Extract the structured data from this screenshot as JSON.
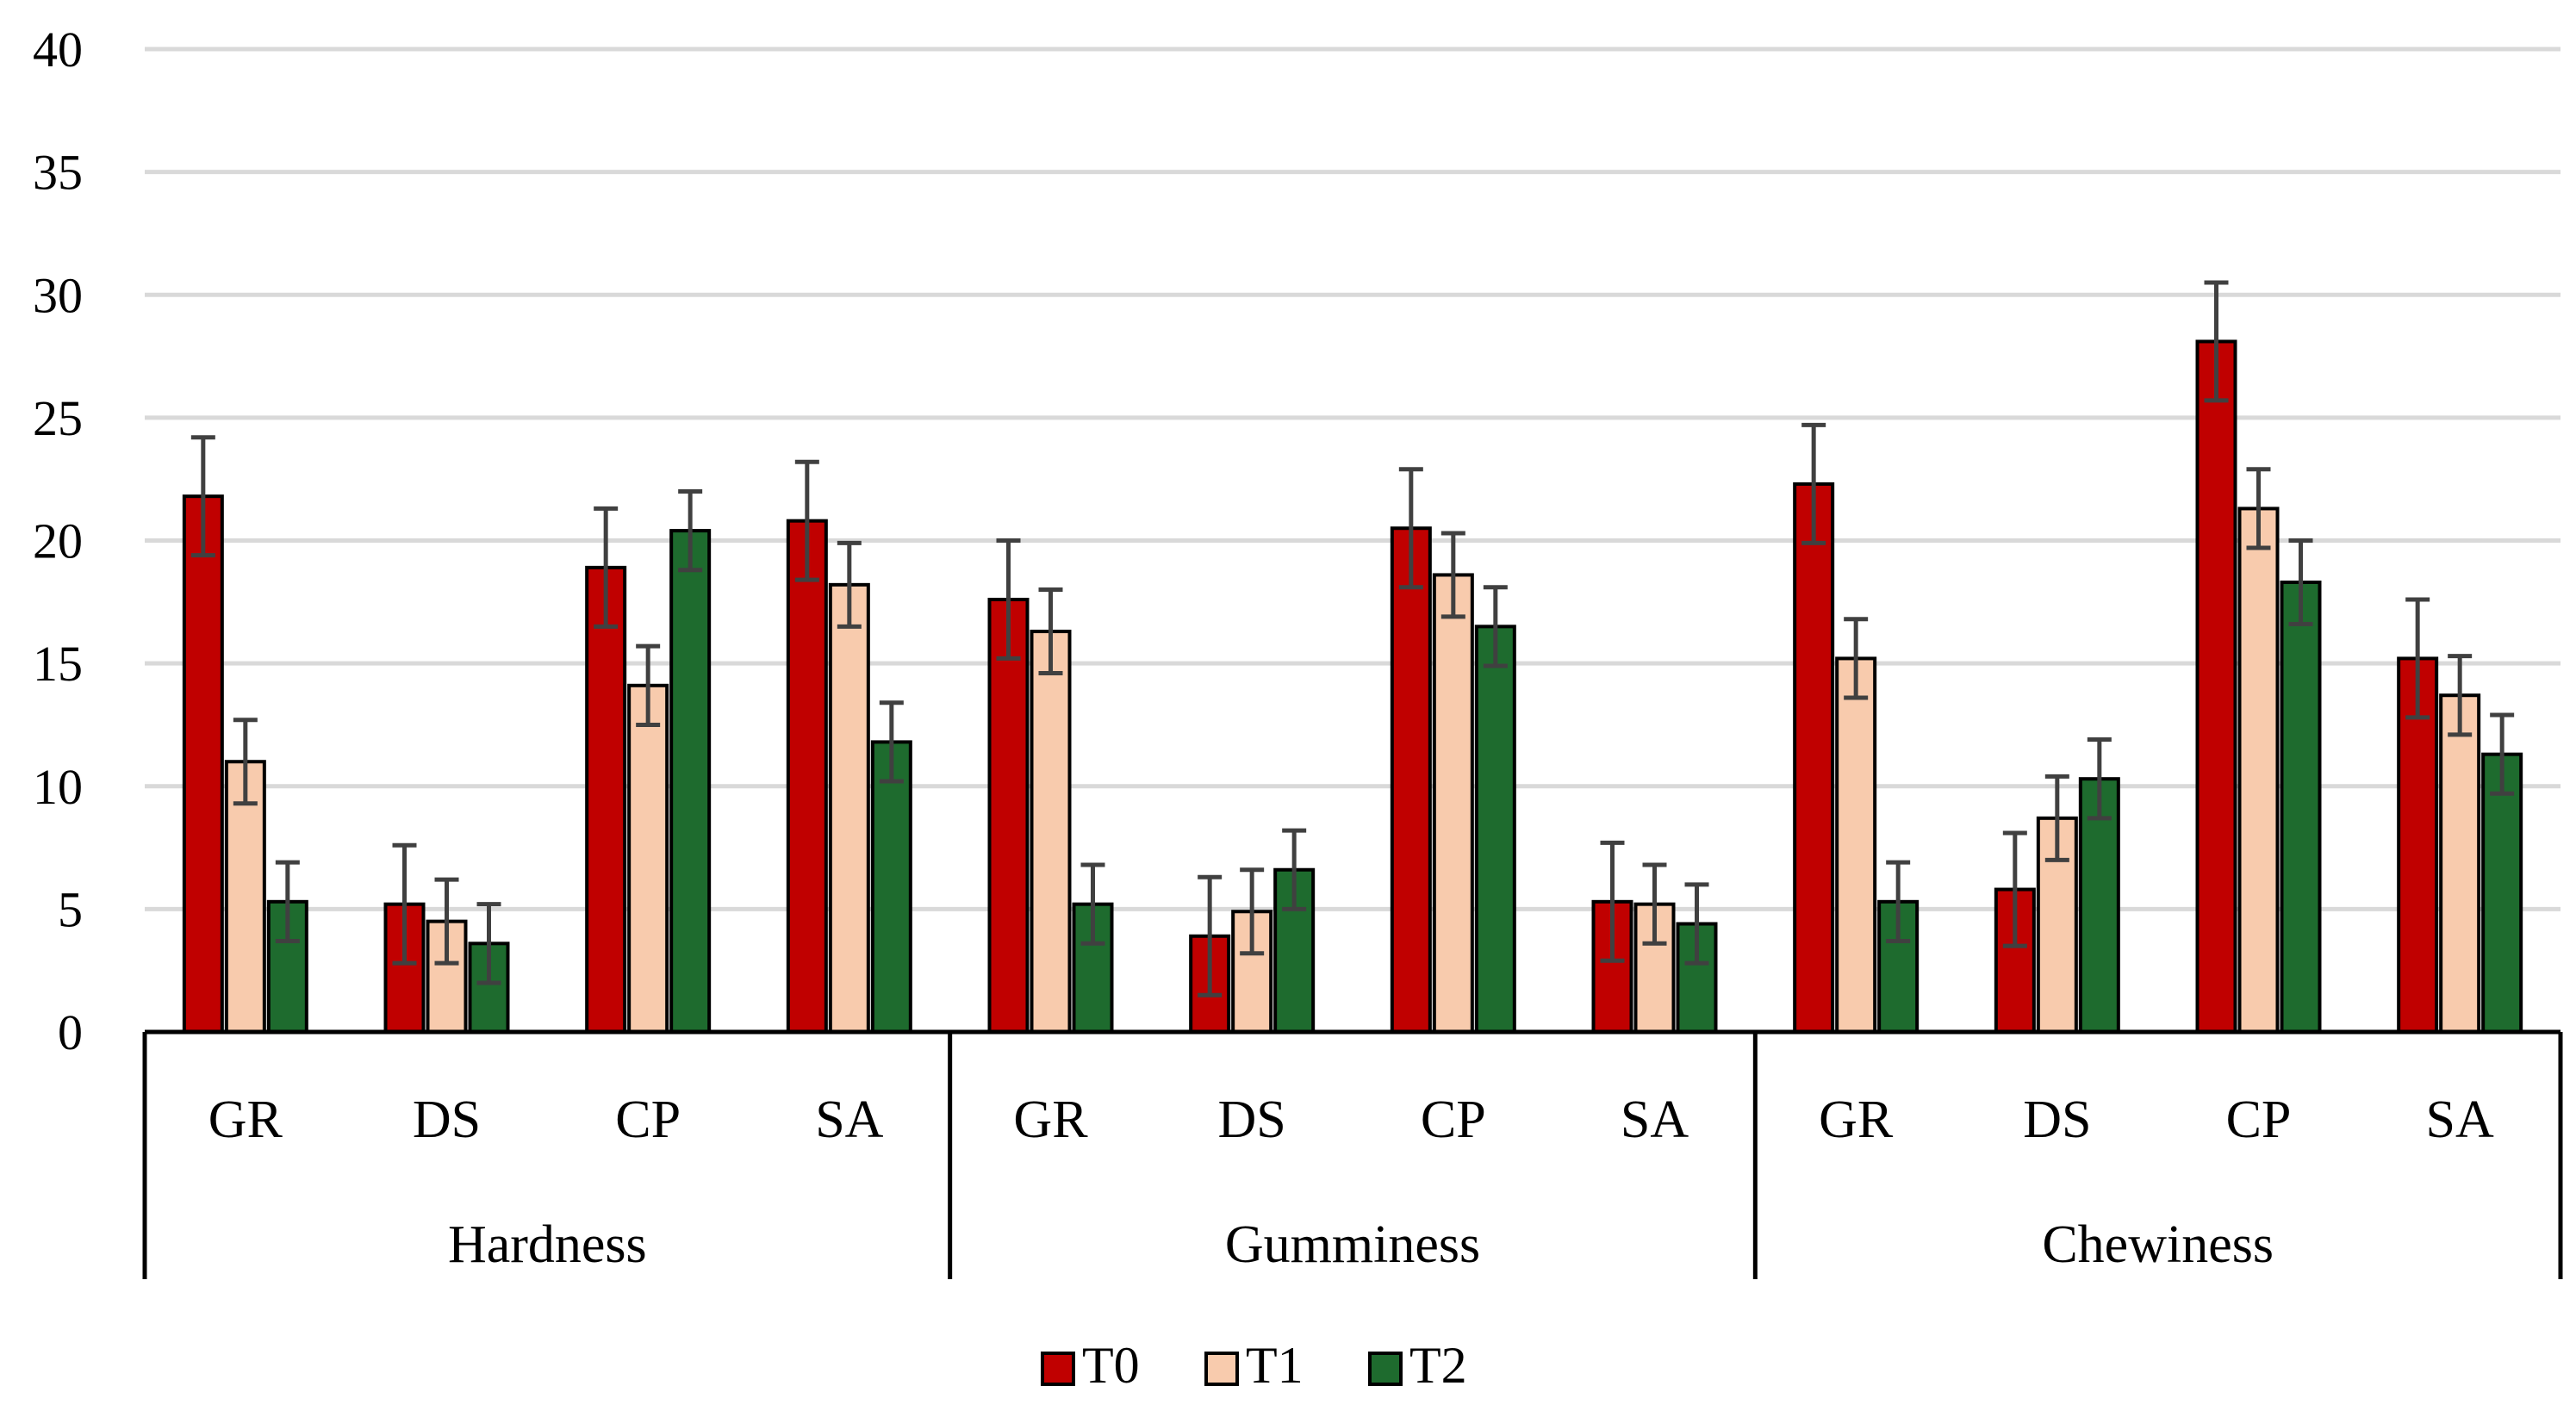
{
  "chart_data": {
    "type": "bar",
    "ylim": [
      0,
      40
    ],
    "yticks": [
      0,
      5,
      10,
      15,
      20,
      25,
      30,
      35,
      40
    ],
    "grid": true,
    "legend_position": "bottom",
    "groups": [
      {
        "label": "Hardness",
        "categories": [
          "GR",
          "DS",
          "CP",
          "SA"
        ]
      },
      {
        "label": "Gumminess",
        "categories": [
          "GR",
          "DS",
          "CP",
          "SA"
        ]
      },
      {
        "label": "Chewiness",
        "categories": [
          "GR",
          "DS",
          "CP",
          "SA"
        ]
      }
    ],
    "series": [
      {
        "name": "T0",
        "color": "#C00000",
        "values": [
          21.8,
          5.2,
          18.9,
          20.8,
          17.6,
          3.9,
          20.5,
          5.3,
          22.3,
          5.8,
          28.1,
          15.2
        ],
        "errors": [
          2.4,
          2.4,
          2.4,
          2.4,
          2.4,
          2.4,
          2.4,
          2.4,
          2.4,
          2.3,
          2.4,
          2.4
        ]
      },
      {
        "name": "T1",
        "color": "#F8CBAD",
        "values": [
          11.0,
          4.5,
          14.1,
          18.2,
          16.3,
          4.9,
          18.6,
          5.2,
          15.2,
          8.7,
          21.3,
          13.7
        ],
        "errors": [
          1.7,
          1.7,
          1.6,
          1.7,
          1.7,
          1.7,
          1.7,
          1.6,
          1.6,
          1.7,
          1.6,
          1.6
        ]
      },
      {
        "name": "T2",
        "color": "#1E6B2E",
        "values": [
          5.3,
          3.6,
          20.4,
          11.8,
          5.2,
          6.6,
          16.5,
          4.4,
          5.3,
          10.3,
          18.3,
          11.3
        ],
        "errors": [
          1.6,
          1.6,
          1.6,
          1.6,
          1.6,
          1.6,
          1.6,
          1.6,
          1.6,
          1.6,
          1.7,
          1.6
        ]
      }
    ]
  }
}
